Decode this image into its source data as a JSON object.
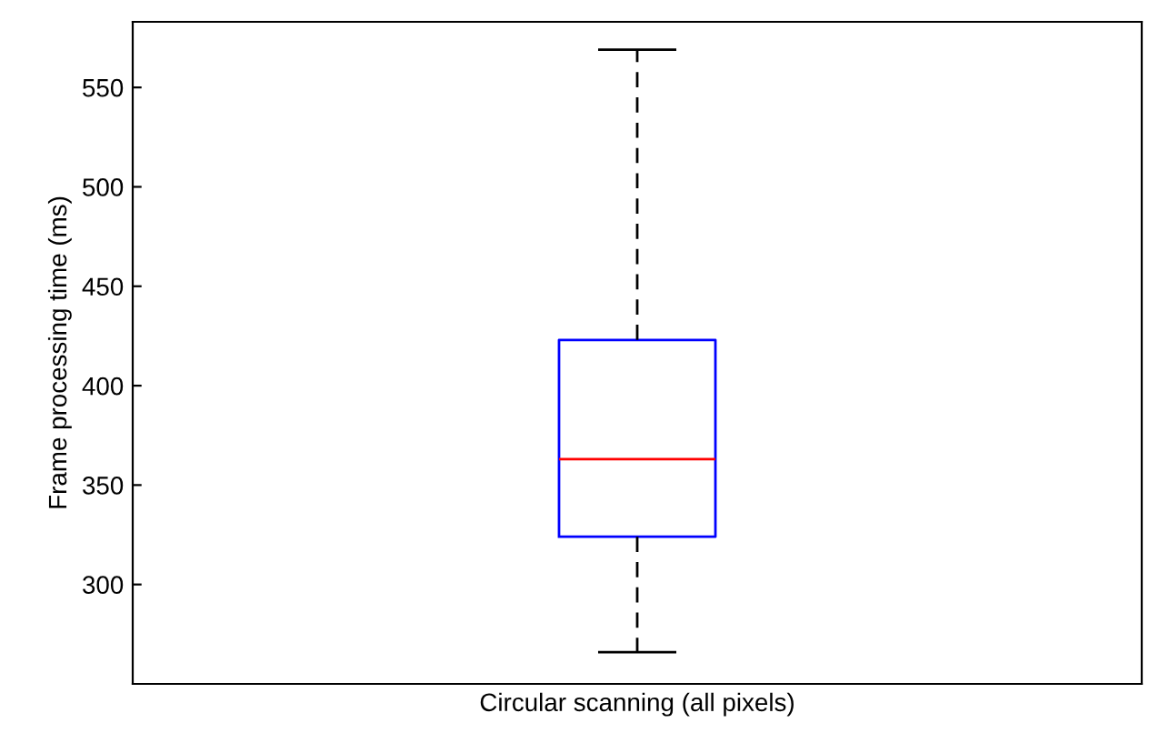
{
  "chart_data": {
    "type": "box",
    "categories": [
      "Circular scanning (all pixels)"
    ],
    "ylabel": "Frame processing time (ms)",
    "boxes": [
      {
        "low": 266,
        "q1": 324,
        "median": 363,
        "q3": 423,
        "high": 569
      }
    ],
    "ylim": [
      250,
      583
    ],
    "yticks": [
      300,
      350,
      400,
      450,
      500,
      550
    ],
    "grid": false
  }
}
